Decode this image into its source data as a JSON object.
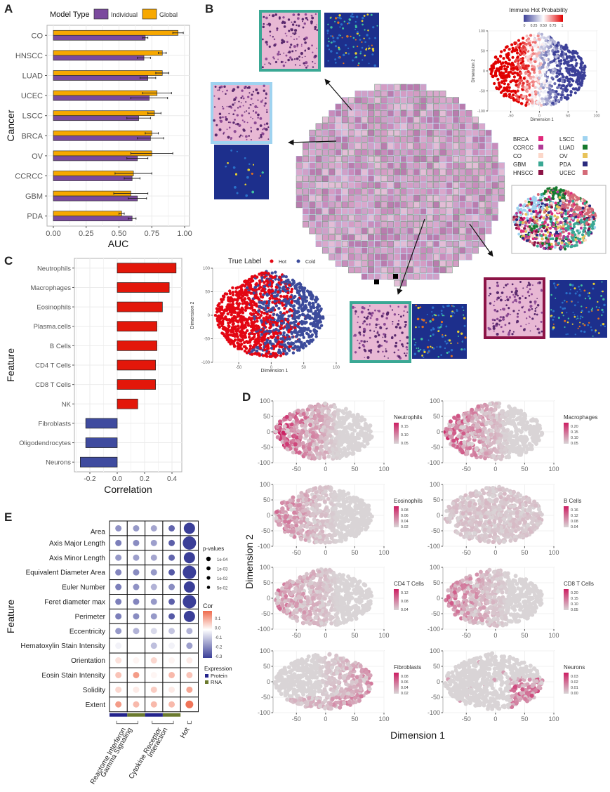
{
  "panels": {
    "A": {
      "label": "A"
    },
    "B": {
      "label": "B"
    },
    "C": {
      "label": "C"
    },
    "D": {
      "label": "D"
    },
    "E": {
      "label": "E"
    }
  },
  "chart_data": [
    {
      "id": "A",
      "type": "bar",
      "orientation": "horizontal",
      "title": "",
      "xlabel": "AUC",
      "ylabel": "Cancer",
      "xlim": [
        0,
        1
      ],
      "xticks": [
        "0.00",
        "0.25",
        "0.50",
        "0.75",
        "1.00"
      ],
      "legend": {
        "title": "Model Type",
        "placement": "top",
        "entries": [
          {
            "name": "Individual",
            "color": "#7b4a9e"
          },
          {
            "name": "Global",
            "color": "#f7a800"
          }
        ]
      },
      "categories": [
        "CO",
        "HNSCC",
        "LUAD",
        "UCEC",
        "LSCC",
        "BRCA",
        "OV",
        "CCRCC",
        "GBM",
        "PDA"
      ],
      "series": [
        {
          "name": "Global",
          "color": "#f7a800",
          "values": [
            0.95,
            0.83,
            0.83,
            0.79,
            0.77,
            0.75,
            0.75,
            0.61,
            0.59,
            0.52
          ],
          "err": [
            0.04,
            0.03,
            0.05,
            0.11,
            0.05,
            0.05,
            0.16,
            0.14,
            0.13,
            0.02
          ]
        },
        {
          "name": "Individual",
          "color": "#7b4a9e",
          "values": [
            0.7,
            0.69,
            0.72,
            0.73,
            0.65,
            0.74,
            0.64,
            0.6,
            0.64,
            0.6
          ],
          "err": [
            0.02,
            0.05,
            0.06,
            0.14,
            0.09,
            0.1,
            0.08,
            0.06,
            0.07,
            0.03
          ]
        }
      ]
    },
    {
      "id": "B-prob",
      "type": "scatter",
      "title": "Immune Hot Probability",
      "xlabel": "Dimension 1",
      "ylabel": "Dimension 2",
      "xlim": [
        -90,
        100
      ],
      "ylim": [
        -100,
        100
      ],
      "xticks": [
        "-50",
        "0",
        "50",
        "100"
      ],
      "yticks": [
        "100",
        "50",
        "0",
        "-50",
        "-100"
      ],
      "colorbar": {
        "ticks": [
          "0",
          "0.25",
          "0.50",
          "0.75",
          "1"
        ],
        "low": "#3b3f98",
        "mid": "#ffffff",
        "high": "#e00000"
      },
      "description": "Left cluster high probability (red), right cluster low probability (blue)"
    },
    {
      "id": "B-cancer",
      "type": "scatter",
      "title": "",
      "legend": {
        "placement": "top",
        "entries": [
          {
            "name": "BRCA",
            "color": "#e0287a"
          },
          {
            "name": "LSCC",
            "color": "#9fd3f0"
          },
          {
            "name": "CCRCC",
            "color": "#b03a96"
          },
          {
            "name": "LUAD",
            "color": "#157a2e"
          },
          {
            "name": "CO",
            "color": "#fcd7c9"
          },
          {
            "name": "OV",
            "color": "#e8c35a"
          },
          {
            "name": "GBM",
            "color": "#3aa894"
          },
          {
            "name": "PDA",
            "color": "#2a2a7e"
          },
          {
            "name": "HNSCC",
            "color": "#8c1346"
          },
          {
            "name": "UCEC",
            "color": "#d46a78"
          }
        ]
      }
    },
    {
      "id": "B-truelabel",
      "type": "scatter",
      "title": "",
      "xlabel": "Dimension 1",
      "ylabel": "Dimension 2",
      "xlim": [
        -90,
        100
      ],
      "ylim": [
        -100,
        100
      ],
      "xticks": [
        "-50",
        "0",
        "50",
        "100"
      ],
      "yticks": [
        "100",
        "50",
        "0",
        "-50",
        "-100"
      ],
      "legend": {
        "title": "True Label",
        "placement": "top",
        "entries": [
          {
            "name": "Hot",
            "color": "#e30613"
          },
          {
            "name": "Cold",
            "color": "#3c4b9b"
          }
        ]
      }
    },
    {
      "id": "C",
      "type": "bar",
      "orientation": "horizontal",
      "xlabel": "Correlation",
      "ylabel": "Feature",
      "xlim": [
        -0.3,
        0.45
      ],
      "xticks": [
        "-0.2",
        "0.0",
        "0.2",
        "0.4"
      ],
      "categories": [
        "Neutrophils",
        "Macrophages",
        "Eosinophils",
        "Plasma.cells",
        "B Cells",
        "CD4 T Cells",
        "CD8 T Cells",
        "NK",
        "Fibroblasts",
        "Oligodendrocytes",
        "Neurons"
      ],
      "values": [
        0.43,
        0.38,
        0.33,
        0.29,
        0.29,
        0.28,
        0.28,
        0.15,
        -0.23,
        -0.23,
        -0.27
      ],
      "positive_color": "#e3170a",
      "negative_color": "#3f4b9f"
    },
    {
      "id": "D",
      "type": "scatter",
      "xlabel": "Dimension 1",
      "ylabel": "Dimension 2",
      "xlim": [
        -90,
        100
      ],
      "ylim": [
        -100,
        100
      ],
      "xticks": [
        "-50",
        "0",
        "50",
        "100"
      ],
      "yticks": [
        "100",
        "50",
        "0",
        "-50",
        "-100"
      ],
      "low_color": "#d9d4d6",
      "high_color": "#cc1e62",
      "facets": [
        {
          "name": "Neutrophils",
          "ticks": [
            "0.15",
            "0.10",
            "0.05"
          ],
          "hotspot": "left",
          "intensity": 0.8
        },
        {
          "name": "Macrophages",
          "ticks": [
            "0.20",
            "0.15",
            "0.10",
            "0.05"
          ],
          "hotspot": "left",
          "intensity": 0.7
        },
        {
          "name": "Eosinophils",
          "ticks": [
            "0.08",
            "0.06",
            "0.04",
            "0.02"
          ],
          "hotspot": "left",
          "intensity": 0.45
        },
        {
          "name": "B Cells",
          "ticks": [
            "0.16",
            "0.12",
            "0.08",
            "0.04"
          ],
          "hotspot": "center",
          "intensity": 0.4
        },
        {
          "name": "CD4 T Cells",
          "ticks": [
            "0.12",
            "0.08",
            "0.04"
          ],
          "hotspot": "left",
          "intensity": 0.45
        },
        {
          "name": "CD8 T Cells",
          "ticks": [
            "0.20",
            "0.15",
            "0.10",
            "0.05"
          ],
          "hotspot": "left",
          "intensity": 0.55
        },
        {
          "name": "Fibroblasts",
          "ticks": [
            "0.08",
            "0.06",
            "0.04",
            "0.02"
          ],
          "hotspot": "right",
          "intensity": 0.5
        },
        {
          "name": "Neurons",
          "ticks": [
            "0.03",
            "0.02",
            "0.01",
            "0.00"
          ],
          "hotspot": "bottom-right",
          "intensity": 0.6
        }
      ]
    },
    {
      "id": "E",
      "type": "heatmap",
      "ylabel": "Feature",
      "rows": [
        "Area",
        "Axis Major Length",
        "Axis Minor Length",
        "Equivalent Diameter Area",
        "Euler Number",
        "Feret diameter max",
        "Perimeter",
        "Eccentricity",
        "Hematoxylin Stain Intensity",
        "Orientation",
        "Eosin Stain Intensity",
        "Solidity",
        "Extent"
      ],
      "columns": [
        {
          "group": "Reactome Interferon Gamma Signaling",
          "expression": "Protein"
        },
        {
          "group": "Reactome Interferon Gamma Signaling",
          "expression": "RNA"
        },
        {
          "group": "Cytokine Receptor Interaction",
          "expression": "Protein"
        },
        {
          "group": "Cytokine Receptor Interaction",
          "expression": "RNA"
        },
        {
          "group": "Hot",
          "expression": ""
        }
      ],
      "column_groups": [
        "Reactome Interferon Gamma Signaling",
        "Cytokine Receptor Interaction",
        "Hot"
      ],
      "cor": [
        [
          -0.17,
          -0.16,
          -0.14,
          -0.24,
          -0.32
        ],
        [
          -0.2,
          -0.18,
          -0.15,
          -0.25,
          -0.33
        ],
        [
          -0.16,
          -0.15,
          -0.14,
          -0.24,
          -0.32
        ],
        [
          -0.19,
          -0.18,
          -0.16,
          -0.26,
          -0.33
        ],
        [
          -0.2,
          -0.17,
          -0.12,
          -0.18,
          -0.32
        ],
        [
          -0.2,
          -0.19,
          -0.16,
          -0.25,
          -0.33
        ],
        [
          -0.2,
          -0.18,
          -0.16,
          -0.26,
          -0.33
        ],
        [
          -0.16,
          -0.12,
          -0.06,
          -0.09,
          -0.12
        ],
        [
          -0.02,
          0.0,
          -0.1,
          -0.02,
          -0.15
        ],
        [
          0.03,
          0.01,
          0.04,
          0.01,
          0.02
        ],
        [
          0.06,
          0.1,
          0.01,
          0.07,
          0.06
        ],
        [
          0.04,
          0.02,
          0.05,
          0.02,
          0.09
        ],
        [
          0.1,
          0.07,
          0.07,
          0.07,
          0.14
        ]
      ],
      "pvalue_size": [
        [
          1,
          1,
          1,
          1,
          4
        ],
        [
          1,
          1,
          1,
          1,
          5
        ],
        [
          1,
          1,
          1,
          1,
          4
        ],
        [
          1,
          1,
          1,
          1,
          5
        ],
        [
          1,
          1,
          1,
          1,
          4
        ],
        [
          1,
          1,
          1,
          1,
          5
        ],
        [
          1,
          1,
          1,
          1,
          4
        ],
        [
          1,
          1,
          1,
          1,
          1
        ],
        [
          1,
          1,
          1,
          1,
          1
        ],
        [
          1,
          1,
          1,
          1,
          1
        ],
        [
          1,
          1,
          1,
          1,
          1
        ],
        [
          1,
          1,
          1,
          1,
          1
        ],
        [
          1,
          1,
          1,
          1,
          2
        ]
      ],
      "legend_pvalues": {
        "title": "p-values",
        "entries": [
          "1e-04",
          "1e-03",
          "1e-02",
          "5e-02"
        ]
      },
      "legend_cor": {
        "title": "Cor",
        "ticks": [
          "0.1",
          "0.0",
          "-0.1",
          "-0.2",
          "-0.3"
        ],
        "low": "#3b3f98",
        "mid": "#ffffff",
        "high": "#ef6a4c"
      },
      "legend_expression": {
        "title": "Expression",
        "entries": [
          {
            "name": "Protein",
            "color": "#23238c"
          },
          {
            "name": "RNA",
            "color": "#6b7a2e"
          }
        ]
      }
    }
  ]
}
